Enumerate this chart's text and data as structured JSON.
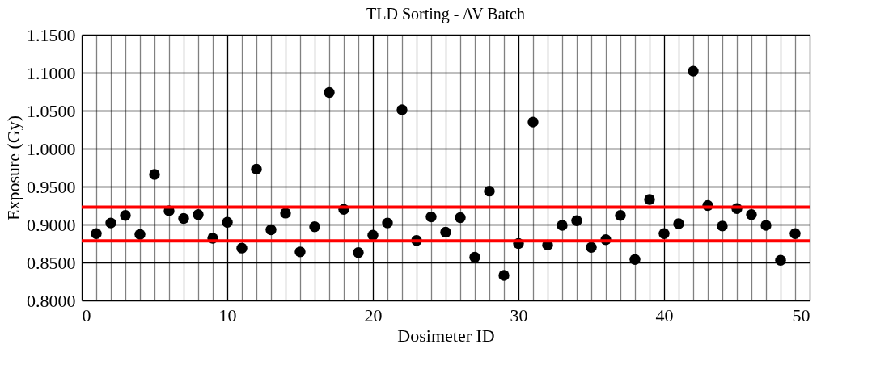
{
  "chart_data": {
    "type": "scatter",
    "title": "TLD Sorting - AV Batch",
    "xlabel": "Dosimeter ID",
    "ylabel": "Exposure (Gy)",
    "x": [
      1,
      2,
      3,
      4,
      5,
      6,
      7,
      8,
      9,
      10,
      11,
      12,
      13,
      14,
      15,
      16,
      17,
      18,
      19,
      20,
      21,
      22,
      23,
      24,
      25,
      26,
      27,
      28,
      29,
      30,
      31,
      32,
      33,
      34,
      35,
      36,
      37,
      38,
      39,
      40,
      41,
      42,
      43,
      44,
      45,
      46,
      47,
      48,
      49
    ],
    "series": [
      {
        "color": "#000000",
        "values": [
          0.888,
          0.902,
          0.912,
          0.887,
          0.966,
          0.918,
          0.908,
          0.913,
          0.882,
          0.903,
          0.869,
          0.973,
          0.893,
          0.915,
          0.864,
          0.897,
          1.074,
          0.92,
          0.863,
          0.886,
          0.902,
          1.051,
          0.879,
          0.91,
          0.89,
          0.909,
          0.857,
          0.944,
          0.833,
          0.875,
          1.035,
          0.873,
          0.899,
          0.905,
          0.87,
          0.88,
          0.912,
          0.854,
          0.933,
          0.888,
          0.901,
          1.102,
          0.925,
          0.898,
          0.921,
          0.913,
          0.899,
          0.853,
          0.888
        ]
      }
    ],
    "xlim": [
      0,
      50
    ],
    "xticks": [
      0,
      {
        "value": 1,
        "label": null
      },
      {
        "value": 2,
        "label": null
      },
      {
        "value": 3,
        "label": null
      },
      {
        "value": 4,
        "label": null
      },
      {
        "value": 5,
        "label": null
      },
      {
        "value": 6,
        "label": null
      },
      {
        "value": 7,
        "label": null
      },
      {
        "value": 8,
        "label": null
      },
      {
        "value": 9,
        "label": null
      },
      10,
      {
        "value": 11,
        "label": null
      },
      {
        "value": 12,
        "label": null
      },
      {
        "value": 13,
        "label": null
      },
      {
        "value": 14,
        "label": null
      },
      {
        "value": 15,
        "label": null
      },
      {
        "value": 16,
        "label": null
      },
      {
        "value": 17,
        "label": null
      },
      {
        "value": 18,
        "label": null
      },
      {
        "value": 19,
        "label": null
      },
      20,
      {
        "value": 21,
        "label": null
      },
      {
        "value": 22,
        "label": null
      },
      {
        "value": 23,
        "label": null
      },
      {
        "value": 24,
        "label": null
      },
      {
        "value": 25,
        "label": null
      },
      {
        "value": 26,
        "label": null
      },
      {
        "value": 27,
        "label": null
      },
      {
        "value": 28,
        "label": null
      },
      {
        "value": 29,
        "label": null
      },
      30,
      {
        "value": 31,
        "label": null
      },
      {
        "value": 32,
        "label": null
      },
      {
        "value": 33,
        "label": null
      },
      {
        "value": 34,
        "label": null
      },
      {
        "value": 35,
        "label": null
      },
      {
        "value": 36,
        "label": null
      },
      {
        "value": 37,
        "label": null
      },
      {
        "value": 38,
        "label": null
      },
      {
        "value": 39,
        "label": null
      },
      40,
      {
        "value": 41,
        "label": null
      },
      {
        "value": 42,
        "label": null
      },
      {
        "value": 43,
        "label": null
      },
      {
        "value": 44,
        "label": null
      },
      {
        "value": 45,
        "label": null
      },
      {
        "value": 46,
        "label": null
      },
      {
        "value": 47,
        "label": null
      },
      {
        "value": 48,
        "label": null
      },
      {
        "value": 49,
        "label": null
      },
      50
    ],
    "ylim": [
      0.8,
      1.15
    ],
    "yticks": [
      {
        "value": 0.8,
        "label": "0.8000"
      },
      {
        "value": 0.85,
        "label": "0.8500"
      },
      {
        "value": 0.9,
        "label": "0.9000"
      },
      {
        "value": 0.95,
        "label": "0.9500"
      },
      {
        "value": 1.0,
        "label": "1.0000"
      },
      {
        "value": 1.05,
        "label": "1.0500"
      },
      {
        "value": 1.1,
        "label": "1.1000"
      },
      {
        "value": 1.15,
        "label": "1.1500"
      }
    ],
    "ref_lines": [
      {
        "axis": "y",
        "value": 0.923,
        "color": "#ff0000"
      },
      {
        "axis": "y",
        "value": 0.8785,
        "color": "#ff0000"
      }
    ],
    "grid": true,
    "marker": "circle",
    "legend": false
  }
}
